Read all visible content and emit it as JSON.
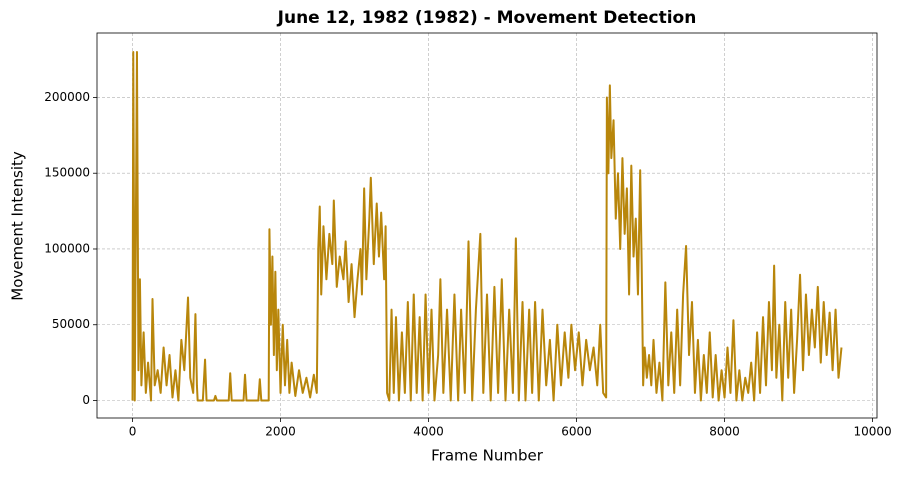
{
  "chart_data": {
    "type": "line",
    "title": "June 12, 1982 (1982) - Movement Detection",
    "x_label": "Frame Number",
    "y_label": "Movement Intensity",
    "xlim": [
      -480,
      10060
    ],
    "ylim": [
      -11550,
      242550
    ],
    "xticks": [
      0,
      2000,
      4000,
      6000,
      8000,
      10000
    ],
    "yticks": [
      0,
      50000,
      100000,
      150000,
      200000
    ],
    "grid": true,
    "series": [
      {
        "color": "#b8860b",
        "x": [
          0,
          10,
          30,
          60,
          80,
          100,
          120,
          150,
          180,
          210,
          250,
          270,
          300,
          340,
          380,
          420,
          460,
          500,
          540,
          580,
          620,
          660,
          700,
          750,
          780,
          820,
          850,
          870,
          880,
          950,
          980,
          1000,
          1100,
          1120,
          1140,
          1300,
          1320,
          1340,
          1500,
          1520,
          1540,
          1700,
          1720,
          1740,
          1840,
          1850,
          1870,
          1890,
          1910,
          1930,
          1950,
          1970,
          2000,
          2030,
          2060,
          2090,
          2120,
          2150,
          2200,
          2250,
          2300,
          2350,
          2400,
          2450,
          2490,
          2510,
          2530,
          2550,
          2580,
          2620,
          2660,
          2700,
          2720,
          2760,
          2800,
          2850,
          2880,
          2920,
          2960,
          3000,
          3040,
          3080,
          3100,
          3130,
          3160,
          3200,
          3220,
          3260,
          3300,
          3330,
          3360,
          3400,
          3420,
          3440,
          3470,
          3500,
          3530,
          3560,
          3600,
          3640,
          3680,
          3720,
          3760,
          3800,
          3840,
          3880,
          3920,
          3960,
          4000,
          4040,
          4080,
          4130,
          4160,
          4200,
          4250,
          4300,
          4350,
          4400,
          4440,
          4490,
          4540,
          4590,
          4640,
          4700,
          4740,
          4790,
          4840,
          4890,
          4940,
          4990,
          5040,
          5090,
          5140,
          5180,
          5220,
          5270,
          5310,
          5360,
          5400,
          5440,
          5490,
          5540,
          5590,
          5640,
          5690,
          5740,
          5790,
          5840,
          5890,
          5930,
          5980,
          6030,
          6080,
          6130,
          6180,
          6230,
          6280,
          6320,
          6360,
          6400,
          6410,
          6430,
          6450,
          6470,
          6500,
          6530,
          6560,
          6590,
          6620,
          6650,
          6680,
          6710,
          6740,
          6770,
          6800,
          6830,
          6860,
          6880,
          6900,
          6920,
          6950,
          6980,
          7010,
          7040,
          7080,
          7120,
          7160,
          7200,
          7240,
          7280,
          7320,
          7360,
          7400,
          7440,
          7480,
          7520,
          7560,
          7600,
          7640,
          7680,
          7720,
          7760,
          7800,
          7840,
          7880,
          7920,
          7960,
          8000,
          8040,
          8080,
          8120,
          8160,
          8200,
          8240,
          8280,
          8320,
          8360,
          8400,
          8440,
          8480,
          8520,
          8560,
          8600,
          8640,
          8670,
          8700,
          8740,
          8780,
          8820,
          8860,
          8900,
          8940,
          8980,
          9020,
          9060,
          9100,
          9140,
          9180,
          9220,
          9260,
          9300,
          9340,
          9380,
          9420,
          9460,
          9500,
          9540,
          9580
        ],
        "values": [
          0,
          230000,
          0,
          230000,
          20000,
          80000,
          10000,
          45000,
          5000,
          25000,
          0,
          67000,
          10000,
          20000,
          5000,
          35000,
          10000,
          30000,
          2000,
          20000,
          0,
          40000,
          20000,
          68000,
          15000,
          5000,
          57000,
          10000,
          0,
          0,
          27000,
          0,
          0,
          3000,
          0,
          0,
          18000,
          0,
          0,
          17000,
          0,
          0,
          14000,
          0,
          0,
          113000,
          50000,
          95000,
          30000,
          85000,
          20000,
          60000,
          5000,
          50000,
          10000,
          40000,
          5000,
          25000,
          3000,
          20000,
          5000,
          15000,
          2000,
          17000,
          5000,
          100000,
          128000,
          70000,
          115000,
          80000,
          110000,
          90000,
          132000,
          75000,
          95000,
          80000,
          105000,
          65000,
          90000,
          55000,
          80000,
          100000,
          70000,
          140000,
          80000,
          120000,
          147000,
          90000,
          130000,
          95000,
          124000,
          80000,
          115000,
          5000,
          0,
          60000,
          5000,
          55000,
          0,
          45000,
          5000,
          65000,
          0,
          70000,
          5000,
          55000,
          0,
          70000,
          5000,
          60000,
          0,
          30000,
          80000,
          5000,
          60000,
          0,
          70000,
          0,
          60000,
          5000,
          105000,
          0,
          60000,
          110000,
          5000,
          70000,
          0,
          75000,
          5000,
          80000,
          0,
          60000,
          5000,
          107000,
          0,
          65000,
          0,
          60000,
          5000,
          65000,
          0,
          60000,
          10000,
          40000,
          0,
          50000,
          10000,
          45000,
          15000,
          50000,
          20000,
          45000,
          10000,
          40000,
          20000,
          35000,
          10000,
          50000,
          5000,
          2000,
          200000,
          150000,
          208000,
          160000,
          185000,
          120000,
          150000,
          100000,
          160000,
          110000,
          140000,
          70000,
          155000,
          95000,
          120000,
          70000,
          152000,
          90000,
          10000,
          35000,
          15000,
          30000,
          10000,
          40000,
          5000,
          25000,
          0,
          78000,
          10000,
          45000,
          5000,
          60000,
          10000,
          70000,
          102000,
          30000,
          65000,
          5000,
          40000,
          0,
          30000,
          5000,
          45000,
          2000,
          30000,
          0,
          20000,
          2000,
          35000,
          5000,
          53000,
          0,
          20000,
          0,
          15000,
          5000,
          25000,
          0,
          45000,
          5000,
          55000,
          10000,
          65000,
          20000,
          89000,
          15000,
          50000,
          0,
          65000,
          15000,
          60000,
          5000,
          40000,
          83000,
          20000,
          70000,
          30000,
          60000,
          35000,
          75000,
          25000,
          65000,
          30000,
          58000,
          20000,
          60000,
          15000,
          35000
        ]
      }
    ]
  }
}
